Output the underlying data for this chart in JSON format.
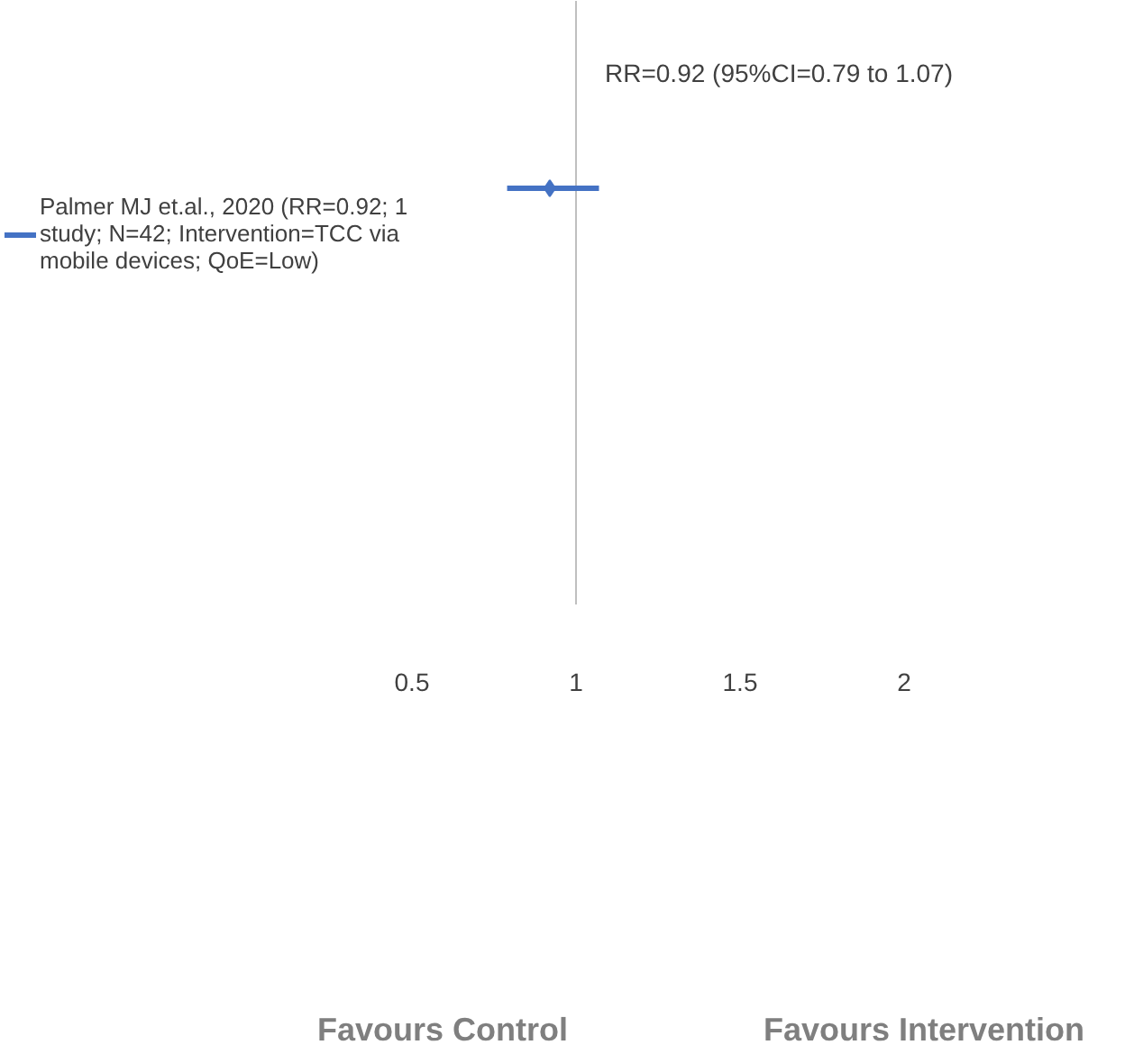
{
  "chart_data": {
    "type": "scatter",
    "orientation": "horizontal",
    "categories": [
      null
    ],
    "series": [
      {
        "name": "Palmer MJ et.al., 2020 (RR=0.92; 1 study; N=42; Intervention=TCC via mobile devices; QoE=Low)",
        "color": "#4472c4",
        "values": [
          0.92
        ],
        "errors": [
          [
            0.79,
            1.07
          ]
        ]
      }
    ],
    "xlim": [
      0.5,
      2
    ],
    "xticks": [
      0.5,
      1,
      1.5,
      2
    ],
    "ref_lines": [
      {
        "axis": "x",
        "value": 1,
        "color": "#bfbfbf"
      }
    ],
    "annotations": [
      "RR=0.92 (95%CI=0.79 to 1.07)",
      "Favours Control",
      "Favours Intervention"
    ],
    "marker": "diamond",
    "grid": false,
    "legend": "left"
  }
}
